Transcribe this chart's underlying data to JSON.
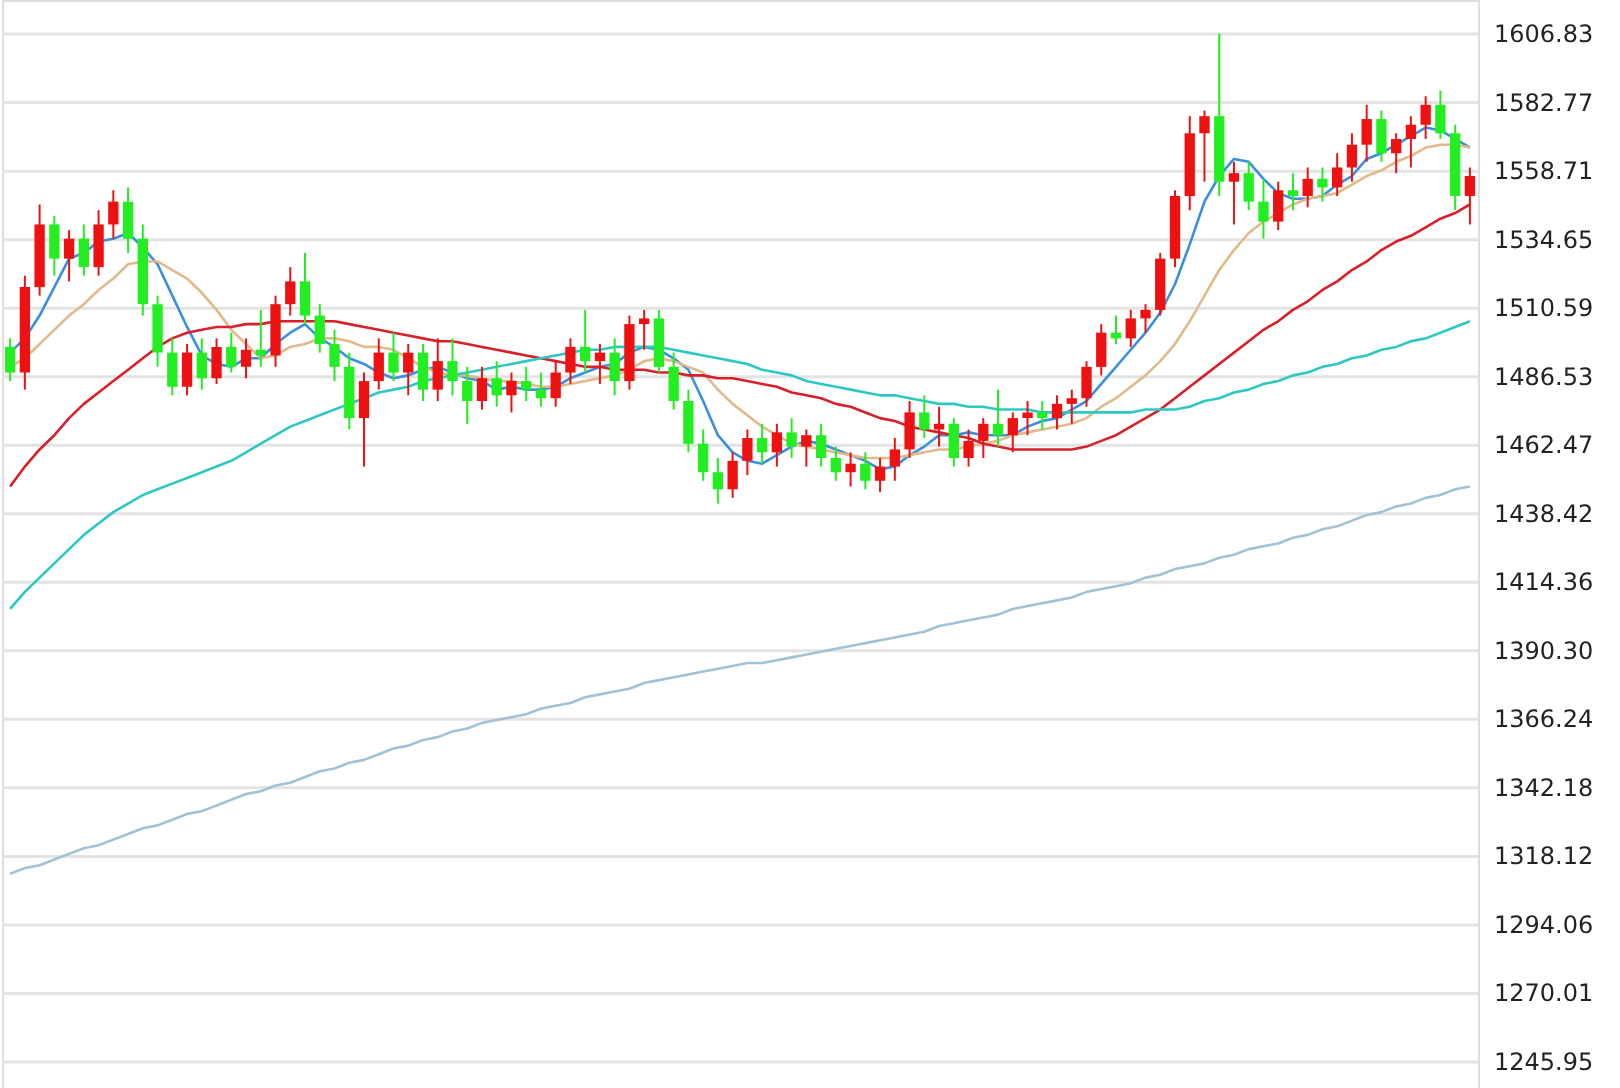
{
  "chart_data": {
    "type": "candlestick",
    "categories": [
      null,
      null,
      null,
      null,
      null,
      null,
      null,
      null,
      null,
      null,
      null,
      null,
      null,
      null,
      null,
      null,
      null,
      null,
      null,
      null,
      null,
      null,
      null,
      null,
      null,
      null,
      null,
      null,
      null,
      null,
      null,
      null,
      null,
      null,
      null,
      null,
      null,
      null,
      null,
      null,
      null,
      null,
      null,
      null,
      null,
      null,
      null,
      null,
      null,
      null,
      null,
      null,
      null,
      null,
      null,
      null,
      null,
      null,
      null,
      null,
      null,
      null,
      null,
      null,
      null,
      null,
      null,
      null,
      null,
      null,
      null,
      null,
      null,
      null,
      null,
      null,
      null,
      null,
      null,
      null,
      null,
      null,
      null,
      null,
      null,
      null,
      null,
      null,
      null,
      null,
      null,
      null,
      null,
      null,
      null,
      null,
      null,
      null,
      null,
      null
    ],
    "ohlc": [
      [
        1497,
        1500,
        1485,
        1488
      ],
      [
        1488,
        1522,
        1482,
        1518
      ],
      [
        1518,
        1547,
        1515,
        1540
      ],
      [
        1540,
        1543,
        1522,
        1528
      ],
      [
        1528,
        1538,
        1520,
        1535
      ],
      [
        1535,
        1540,
        1522,
        1525
      ],
      [
        1525,
        1545,
        1522,
        1540
      ],
      [
        1540,
        1552,
        1535,
        1548
      ],
      [
        1548,
        1553,
        1530,
        1535
      ],
      [
        1535,
        1540,
        1508,
        1512
      ],
      [
        1512,
        1515,
        1490,
        1495
      ],
      [
        1495,
        1500,
        1480,
        1483
      ],
      [
        1483,
        1498,
        1480,
        1495
      ],
      [
        1495,
        1500,
        1482,
        1486
      ],
      [
        1486,
        1500,
        1484,
        1497
      ],
      [
        1497,
        1502,
        1488,
        1490
      ],
      [
        1490,
        1500,
        1486,
        1496
      ],
      [
        1496,
        1510,
        1490,
        1494
      ],
      [
        1494,
        1515,
        1490,
        1512
      ],
      [
        1512,
        1525,
        1508,
        1520
      ],
      [
        1520,
        1530,
        1505,
        1508
      ],
      [
        1508,
        1512,
        1495,
        1498
      ],
      [
        1498,
        1503,
        1485,
        1490
      ],
      [
        1490,
        1495,
        1468,
        1472
      ],
      [
        1472,
        1488,
        1455,
        1485
      ],
      [
        1485,
        1500,
        1482,
        1495
      ],
      [
        1495,
        1502,
        1485,
        1488
      ],
      [
        1488,
        1498,
        1480,
        1495
      ],
      [
        1495,
        1498,
        1478,
        1482
      ],
      [
        1482,
        1500,
        1478,
        1492
      ],
      [
        1492,
        1500,
        1480,
        1485
      ],
      [
        1485,
        1490,
        1470,
        1478
      ],
      [
        1478,
        1490,
        1475,
        1486
      ],
      [
        1486,
        1492,
        1476,
        1480
      ],
      [
        1480,
        1488,
        1474,
        1485
      ],
      [
        1485,
        1490,
        1478,
        1482
      ],
      [
        1482,
        1488,
        1476,
        1479
      ],
      [
        1479,
        1492,
        1476,
        1488
      ],
      [
        1488,
        1500,
        1484,
        1497
      ],
      [
        1497,
        1510,
        1488,
        1492
      ],
      [
        1492,
        1498,
        1484,
        1495
      ],
      [
        1495,
        1500,
        1480,
        1485
      ],
      [
        1485,
        1508,
        1482,
        1505
      ],
      [
        1505,
        1510,
        1496,
        1507
      ],
      [
        1507,
        1510,
        1488,
        1490
      ],
      [
        1490,
        1495,
        1475,
        1478
      ],
      [
        1478,
        1482,
        1460,
        1463
      ],
      [
        1463,
        1468,
        1450,
        1453
      ],
      [
        1453,
        1458,
        1442,
        1447
      ],
      [
        1447,
        1460,
        1444,
        1457
      ],
      [
        1457,
        1468,
        1452,
        1465
      ],
      [
        1465,
        1470,
        1456,
        1460
      ],
      [
        1460,
        1470,
        1455,
        1467
      ],
      [
        1467,
        1472,
        1458,
        1462
      ],
      [
        1462,
        1468,
        1455,
        1466
      ],
      [
        1466,
        1470,
        1455,
        1458
      ],
      [
        1458,
        1462,
        1450,
        1453
      ],
      [
        1453,
        1460,
        1448,
        1456
      ],
      [
        1456,
        1460,
        1447,
        1450
      ],
      [
        1450,
        1458,
        1446,
        1455
      ],
      [
        1455,
        1465,
        1450,
        1461
      ],
      [
        1461,
        1478,
        1458,
        1474
      ],
      [
        1474,
        1480,
        1465,
        1468
      ],
      [
        1468,
        1476,
        1462,
        1470
      ],
      [
        1470,
        1472,
        1455,
        1458
      ],
      [
        1458,
        1468,
        1455,
        1464
      ],
      [
        1464,
        1472,
        1458,
        1470
      ],
      [
        1470,
        1482,
        1462,
        1466
      ],
      [
        1466,
        1474,
        1460,
        1472
      ],
      [
        1472,
        1478,
        1466,
        1474
      ],
      [
        1474,
        1478,
        1468,
        1472
      ],
      [
        1472,
        1480,
        1468,
        1477
      ],
      [
        1477,
        1482,
        1470,
        1479
      ],
      [
        1479,
        1492,
        1476,
        1490
      ],
      [
        1490,
        1505,
        1487,
        1502
      ],
      [
        1502,
        1508,
        1498,
        1500
      ],
      [
        1500,
        1510,
        1497,
        1507
      ],
      [
        1507,
        1512,
        1502,
        1510
      ],
      [
        1510,
        1530,
        1508,
        1528
      ],
      [
        1528,
        1552,
        1525,
        1550
      ],
      [
        1550,
        1578,
        1545,
        1572
      ],
      [
        1572,
        1580,
        1555,
        1578
      ],
      [
        1578,
        1607,
        1550,
        1555
      ],
      [
        1555,
        1562,
        1540,
        1558
      ],
      [
        1558,
        1562,
        1545,
        1548
      ],
      [
        1548,
        1556,
        1535,
        1541
      ],
      [
        1541,
        1555,
        1538,
        1552
      ],
      [
        1552,
        1558,
        1545,
        1550
      ],
      [
        1550,
        1560,
        1546,
        1556
      ],
      [
        1556,
        1560,
        1548,
        1553
      ],
      [
        1553,
        1565,
        1550,
        1560
      ],
      [
        1560,
        1572,
        1555,
        1568
      ],
      [
        1568,
        1582,
        1562,
        1577
      ],
      [
        1577,
        1580,
        1562,
        1565
      ],
      [
        1565,
        1572,
        1558,
        1570
      ],
      [
        1570,
        1578,
        1560,
        1575
      ],
      [
        1575,
        1585,
        1570,
        1582
      ],
      [
        1582,
        1587,
        1570,
        1572
      ],
      [
        1572,
        1575,
        1545,
        1550
      ],
      [
        1550,
        1560,
        1540,
        1557
      ]
    ],
    "colors": [
      "#22ee22",
      "#ee1111",
      "#ee1111",
      "#22ee22",
      "#ee1111",
      "#22ee22",
      "#ee1111",
      "#ee1111",
      "#22ee22",
      "#22ee22",
      "#22ee22",
      "#22ee22",
      "#ee1111",
      "#22ee22",
      "#ee1111",
      "#22ee22",
      "#ee1111",
      "#22ee22",
      "#ee1111",
      "#ee1111",
      "#22ee22",
      "#22ee22",
      "#22ee22",
      "#22ee22",
      "#ee1111",
      "#ee1111",
      "#22ee22",
      "#ee1111",
      "#22ee22",
      "#ee1111",
      "#22ee22",
      "#22ee22",
      "#ee1111",
      "#22ee22",
      "#ee1111",
      "#22ee22",
      "#22ee22",
      "#ee1111",
      "#ee1111",
      "#22ee22",
      "#ee1111",
      "#22ee22",
      "#ee1111",
      "#ee1111",
      "#22ee22",
      "#22ee22",
      "#22ee22",
      "#22ee22",
      "#22ee22",
      "#ee1111",
      "#ee1111",
      "#22ee22",
      "#ee1111",
      "#22ee22",
      "#ee1111",
      "#22ee22",
      "#22ee22",
      "#ee1111",
      "#22ee22",
      "#ee1111",
      "#ee1111",
      "#ee1111",
      "#22ee22",
      "#ee1111",
      "#22ee22",
      "#ee1111",
      "#ee1111",
      "#22ee22",
      "#ee1111",
      "#ee1111",
      "#22ee22",
      "#ee1111",
      "#ee1111",
      "#ee1111",
      "#ee1111",
      "#22ee22",
      "#ee1111",
      "#ee1111",
      "#ee1111",
      "#ee1111",
      "#ee1111",
      "#ee1111",
      "#22ee22",
      "#ee1111",
      "#22ee22",
      "#22ee22",
      "#ee1111",
      "#22ee22",
      "#ee1111",
      "#22ee22",
      "#ee1111",
      "#ee1111",
      "#ee1111",
      "#22ee22",
      "#ee1111",
      "#ee1111",
      "#ee1111",
      "#22ee22",
      "#22ee22",
      "#ee1111"
    ],
    "series": [
      {
        "type": "line",
        "color": "#3b8fe0",
        "values": [
          1495,
          1500,
          1508,
          1518,
          1528,
          1530,
          1534,
          1535,
          1537,
          1532,
          1526,
          1515,
          1504,
          1494,
          1491,
          1490,
          1493,
          1493,
          1498,
          1502,
          1505,
          1500,
          1497,
          1493,
          1491,
          1488,
          1486,
          1487,
          1489,
          1490,
          1488,
          1486,
          1485,
          1482,
          1483,
          1482,
          1482,
          1483,
          1486,
          1488,
          1490,
          1491,
          1495,
          1497,
          1496,
          1493,
          1489,
          1478,
          1466,
          1460,
          1457,
          1456,
          1459,
          1462,
          1464,
          1463,
          1461,
          1459,
          1457,
          1454,
          1455,
          1459,
          1462,
          1466,
          1466,
          1467,
          1466,
          1466,
          1466,
          1469,
          1471,
          1472,
          1475,
          1478,
          1484,
          1490,
          1496,
          1502,
          1509,
          1519,
          1533,
          1548,
          1557,
          1563,
          1562,
          1556,
          1551,
          1549,
          1549,
          1550,
          1554,
          1557,
          1563,
          1565,
          1568,
          1571,
          1574,
          1573,
          1570,
          1567
        ]
      },
      {
        "type": "line",
        "color": "#e2b98a",
        "values": [
          1490,
          1493,
          1498,
          1503,
          1508,
          1512,
          1517,
          1521,
          1526,
          1527,
          1527,
          1524,
          1521,
          1516,
          1510,
          1503,
          1498,
          1493,
          1494,
          1497,
          1498,
          1500,
          1500,
          1499,
          1497,
          1497,
          1496,
          1493,
          1490,
          1488,
          1487,
          1487,
          1486,
          1485,
          1485,
          1484,
          1483,
          1483,
          1484,
          1485,
          1486,
          1487,
          1489,
          1492,
          1493,
          1492,
          1490,
          1488,
          1482,
          1477,
          1473,
          1469,
          1466,
          1463,
          1462,
          1461,
          1460,
          1459,
          1458,
          1458,
          1458,
          1459,
          1460,
          1461,
          1461,
          1462,
          1463,
          1464,
          1466,
          1467,
          1468,
          1469,
          1470,
          1472,
          1476,
          1479,
          1483,
          1487,
          1492,
          1498,
          1506,
          1515,
          1524,
          1531,
          1537,
          1541,
          1544,
          1547,
          1549,
          1550,
          1551,
          1554,
          1557,
          1559,
          1562,
          1564,
          1567,
          1568,
          1568,
          1567
        ]
      },
      {
        "type": "line",
        "color": "#d8202a",
        "values": [
          1448,
          1455,
          1461,
          1466,
          1472,
          1477,
          1481,
          1485,
          1489,
          1493,
          1497,
          1500,
          1502,
          1503,
          1504,
          1504,
          1505,
          1505,
          1506,
          1506,
          1506,
          1506,
          1506,
          1505,
          1504,
          1503,
          1502,
          1501,
          1500,
          1499,
          1499,
          1498,
          1497,
          1496,
          1495,
          1494,
          1493,
          1492,
          1491,
          1490,
          1490,
          1489,
          1489,
          1489,
          1488,
          1488,
          1487,
          1487,
          1486,
          1486,
          1485,
          1484,
          1483,
          1481,
          1480,
          1479,
          1477,
          1476,
          1474,
          1472,
          1471,
          1469,
          1468,
          1467,
          1466,
          1465,
          1463,
          1462,
          1461,
          1461,
          1461,
          1461,
          1461,
          1462,
          1464,
          1466,
          1469,
          1472,
          1475,
          1479,
          1483,
          1487,
          1491,
          1495,
          1499,
          1503,
          1506,
          1510,
          1513,
          1517,
          1520,
          1524,
          1527,
          1531,
          1534,
          1536,
          1539,
          1542,
          1544,
          1547
        ]
      },
      {
        "type": "line",
        "color": "#2ec8c4",
        "values": [
          1405,
          1411,
          1416,
          1421,
          1426,
          1431,
          1435,
          1439,
          1442,
          1445,
          1447,
          1449,
          1451,
          1453,
          1455,
          1457,
          1460,
          1463,
          1466,
          1469,
          1471,
          1473,
          1475,
          1477,
          1479,
          1481,
          1482,
          1483,
          1485,
          1486,
          1487,
          1488,
          1489,
          1490,
          1491,
          1492,
          1493,
          1494,
          1495,
          1496,
          1496,
          1497,
          1497,
          1497,
          1497,
          1496,
          1495,
          1494,
          1493,
          1492,
          1491,
          1489,
          1488,
          1487,
          1485,
          1484,
          1483,
          1482,
          1481,
          1480,
          1480,
          1479,
          1478,
          1477,
          1477,
          1476,
          1476,
          1475,
          1475,
          1475,
          1474,
          1474,
          1474,
          1474,
          1474,
          1474,
          1474,
          1475,
          1475,
          1475,
          1476,
          1478,
          1479,
          1481,
          1482,
          1484,
          1485,
          1487,
          1488,
          1490,
          1491,
          1493,
          1494,
          1496,
          1497,
          1499,
          1500,
          1502,
          1504,
          1506
        ]
      },
      {
        "type": "line",
        "color": "#9fc3d4",
        "values": [
          1312,
          1314,
          1315,
          1317,
          1319,
          1321,
          1322,
          1324,
          1326,
          1328,
          1329,
          1331,
          1333,
          1334,
          1336,
          1338,
          1340,
          1341,
          1343,
          1344,
          1346,
          1348,
          1349,
          1351,
          1352,
          1354,
          1356,
          1357,
          1359,
          1360,
          1362,
          1363,
          1365,
          1366,
          1367,
          1368,
          1370,
          1371,
          1372,
          1374,
          1375,
          1376,
          1377,
          1379,
          1380,
          1381,
          1382,
          1383,
          1384,
          1385,
          1386,
          1386,
          1387,
          1388,
          1389,
          1390,
          1391,
          1392,
          1393,
          1394,
          1395,
          1396,
          1397,
          1399,
          1400,
          1401,
          1402,
          1403,
          1405,
          1406,
          1407,
          1408,
          1409,
          1411,
          1412,
          1413,
          1414,
          1416,
          1417,
          1419,
          1420,
          1421,
          1423,
          1424,
          1426,
          1427,
          1428,
          1430,
          1431,
          1433,
          1434,
          1436,
          1438,
          1439,
          1441,
          1442,
          1444,
          1445,
          1447,
          1448
        ]
      }
    ],
    "ylim": [
      1236.8,
      1618.8
    ],
    "yticks": [
      1606.83,
      1582.77,
      1558.71,
      1534.65,
      1510.59,
      1486.53,
      1462.47,
      1438.42,
      1414.36,
      {
        "value": 1390.3,
        "label": "1390.30"
      },
      1366.24,
      1342.18,
      1318.12,
      1294.06,
      1270.01,
      1245.95
    ],
    "grid": "y",
    "tick_labels": "y"
  }
}
